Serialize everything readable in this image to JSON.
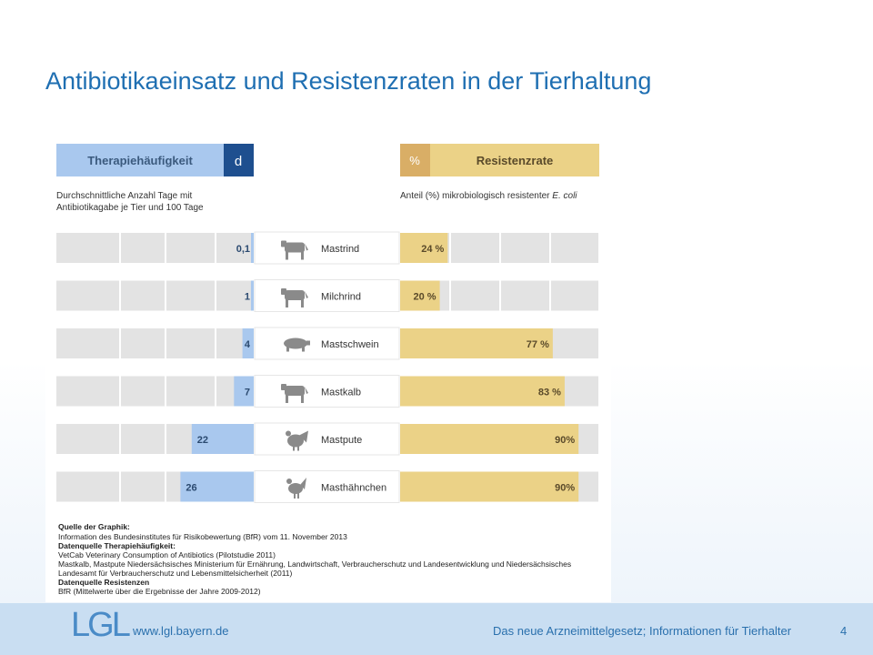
{
  "title": "Antibiotikaeinsatz und Resistenzraten in der Tierhaltung",
  "chart_data": {
    "type": "bar",
    "left_header": "Therapiehäufigkeit",
    "left_unit": "d",
    "left_subtitle_1": "Durchschnittliche Anzahl Tage mit",
    "left_subtitle_2": "Antibiotikagabe je Tier und 100 Tage",
    "right_unit": "%",
    "right_header": "Resistenzrate",
    "right_subtitle": "Anteil (%) mikrobiologisch resistenter",
    "right_subtitle_italic": "E. coli",
    "categories": [
      "Mastrind",
      "Milchrind",
      "Mastschwein",
      "Mastkalb",
      "Mastpute",
      "Masthähnchen"
    ],
    "icons": [
      "cattle-icon",
      "cow-icon",
      "pig-icon",
      "calf-icon",
      "turkey-icon",
      "chicken-icon"
    ],
    "series": [
      {
        "values": [
          0.1,
          1,
          4,
          7,
          22,
          26
        ],
        "labels": [
          "0,1",
          "1",
          "4",
          "7",
          "22",
          "26"
        ],
        "color": "#a9c8ee"
      },
      {
        "values": [
          24,
          20,
          77,
          83,
          90,
          90
        ],
        "labels": [
          "24 %",
          "20 %",
          "77 %",
          "83 %",
          "90%",
          "90%"
        ],
        "color": "#ebd287"
      }
    ],
    "left_range": [
      0,
      70
    ],
    "right_range": [
      0,
      100
    ]
  },
  "sources": {
    "graphic_head": "Quelle der Graphik:",
    "graphic_text": "Information des Bundesinstitutes für Risikobewertung (BfR) vom 11. November 2013",
    "therapy_head": "Datenquelle Therapiehäufigkeit:",
    "therapy_line1": "VetCab Veterinary Consumption of Antibiotics (Pilotstudie 2011)",
    "therapy_line2": "Mastkalb, Mastpute Niedersächsisches Ministerium für Ernährung, Landwirtschaft, Verbraucherschutz und Landesentwicklung und Niedersächsisches",
    "therapy_line3": "Landesamt für Verbraucherschutz und Lebensmittelsicherheit (2011)",
    "resist_head": "Datenquelle Resistenzen",
    "resist_text": "BfR (Mittelwerte über die Ergebnisse der Jahre 2009-2012)"
  },
  "footer": {
    "logo": "LGL",
    "website": "www.lgl.bayern.de",
    "text": "Das neue Arzneimittelgesetz; Informationen für Tierhalter",
    "page": "4"
  },
  "colors": {
    "title": "#1f6fb2",
    "left_accent": "#a9c8ee",
    "left_dark": "#1e4f8f",
    "right_accent": "#ebd287",
    "right_dark": "#d9ae66",
    "track": "#e3e3e3"
  }
}
